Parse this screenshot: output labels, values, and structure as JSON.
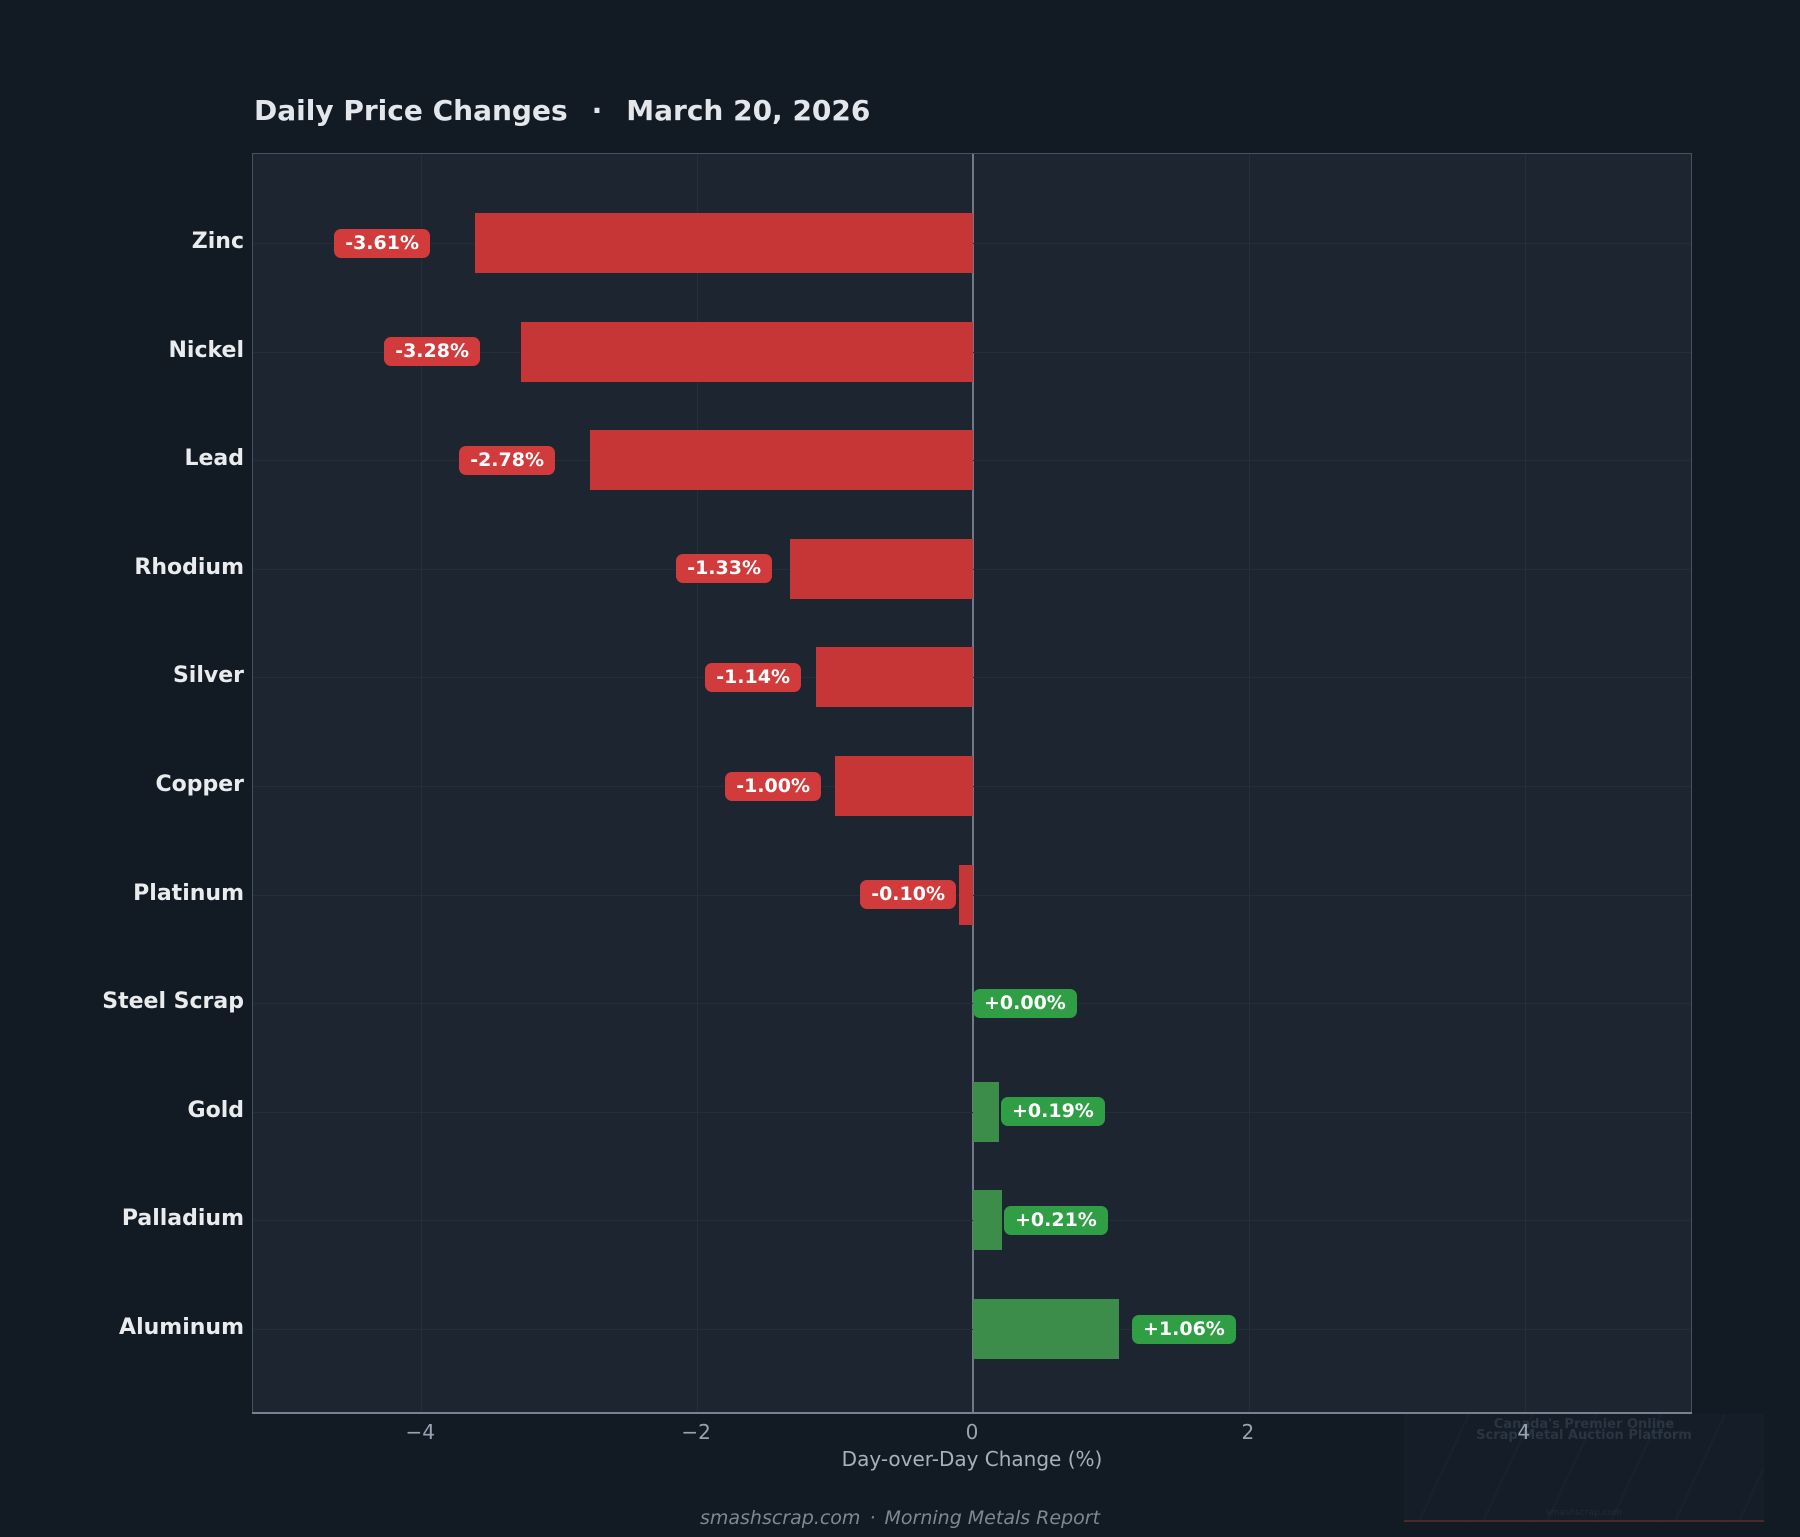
{
  "title": {
    "main": "Daily Price Changes",
    "separator": "·",
    "date": "March 20, 2026"
  },
  "chart_data": {
    "type": "bar",
    "orientation": "horizontal",
    "title": "Daily Price Changes · March 20, 2026",
    "categories": [
      "Zinc",
      "Nickel",
      "Lead",
      "Rhodium",
      "Silver",
      "Copper",
      "Platinum",
      "Steel Scrap",
      "Gold",
      "Palladium",
      "Aluminum"
    ],
    "values": [
      -3.61,
      -3.28,
      -2.78,
      -1.33,
      -1.14,
      -1.0,
      -0.1,
      0.0,
      0.19,
      0.21,
      1.06
    ],
    "value_labels": [
      "-3.61%",
      "-3.28%",
      "-2.78%",
      "-1.33%",
      "-1.14%",
      "-1.00%",
      "-0.10%",
      "+0.00%",
      "+0.19%",
      "+0.21%",
      "+1.06%"
    ],
    "xlabel": "Day-over-Day Change (%)",
    "xticks": [
      -4,
      -2,
      0,
      2,
      4
    ],
    "xtick_labels": [
      "−4",
      "−2",
      "0",
      "2",
      "4"
    ],
    "xlim": [
      -5.22,
      5.22
    ],
    "grid": true,
    "legend": false,
    "colors": {
      "negative_bar": "#c63637",
      "positive_bar": "#3b8d49",
      "negative_badge": "#d13b3c",
      "positive_badge": "#2f9e44",
      "plot_background": "#1c2530",
      "page_background": "#121a24",
      "zero_line": "#6e7a88"
    }
  },
  "footer": {
    "site": "smashscrap.com",
    "separator": "·",
    "report": "Morning Metals Report"
  },
  "watermark": {
    "line1": "Canada's Premier Online",
    "line2": "Scrap Metal Auction Platform",
    "site": "smashscrap.com"
  }
}
